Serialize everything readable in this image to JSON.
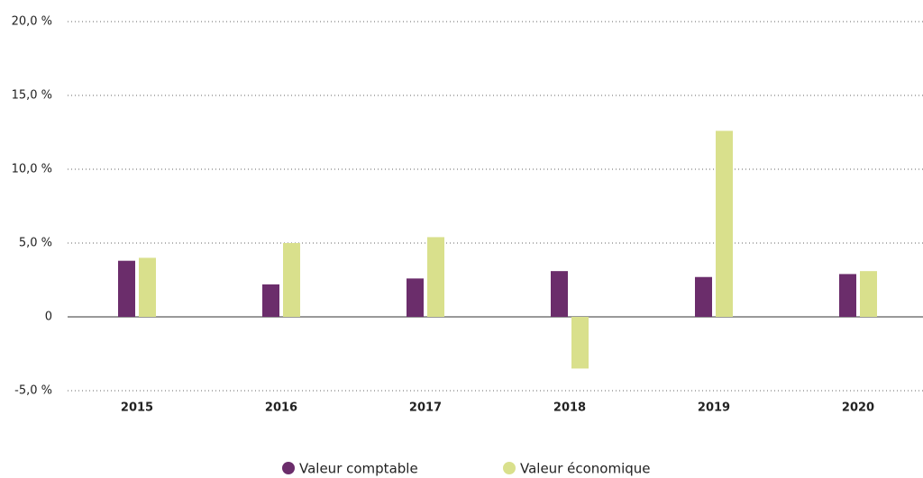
{
  "chart_data": {
    "type": "bar",
    "categories": [
      "2015",
      "2016",
      "2017",
      "2018",
      "2019",
      "2020"
    ],
    "series": [
      {
        "name": "Valeur comptable",
        "color": "#6b2d6b",
        "values": [
          3.8,
          2.2,
          2.6,
          3.1,
          2.7,
          2.9
        ]
      },
      {
        "name": "Valeur économique",
        "color": "#d9e08c",
        "values": [
          4.0,
          5.0,
          5.4,
          -3.5,
          12.6,
          3.1
        ]
      }
    ],
    "ylim": [
      -5,
      20
    ],
    "yticks": [
      {
        "value": -5,
        "label": "-5,0 %"
      },
      0,
      {
        "value": 5,
        "label": "5,0 %"
      },
      {
        "value": 10,
        "label": "10,0 %"
      },
      {
        "value": 15,
        "label": "15,0 %"
      },
      {
        "value": 20,
        "label": "20,0 %"
      }
    ],
    "grid": true
  }
}
